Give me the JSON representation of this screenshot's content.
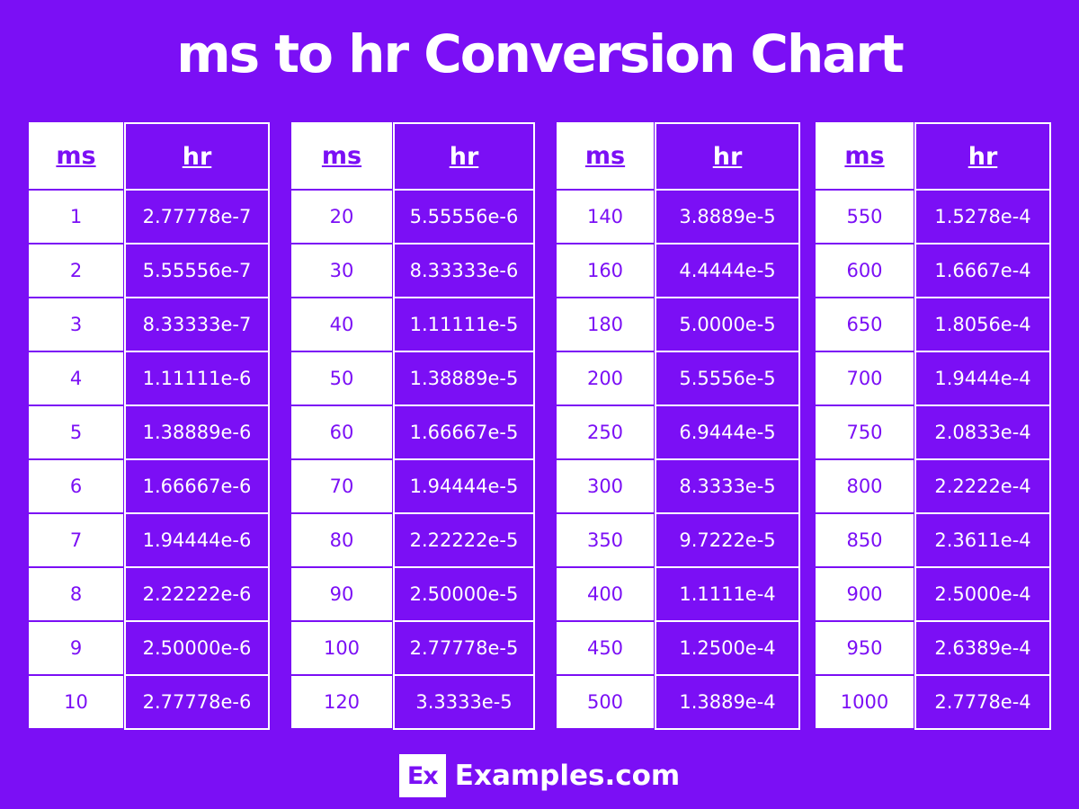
{
  "title": "ms to hr Conversion Chart",
  "colors": {
    "background": "#7b0ff5",
    "text_light": "#ffffff",
    "accent": "#7b0ff5"
  },
  "headers": {
    "ms": "ms",
    "hr": "hr"
  },
  "tables": [
    {
      "rows": [
        {
          "ms": "1",
          "hr": "2.77778e-7"
        },
        {
          "ms": "2",
          "hr": "5.55556e-7"
        },
        {
          "ms": "3",
          "hr": "8.33333e-7"
        },
        {
          "ms": "4",
          "hr": "1.11111e-6"
        },
        {
          "ms": "5",
          "hr": "1.38889e-6"
        },
        {
          "ms": "6",
          "hr": "1.66667e-6"
        },
        {
          "ms": "7",
          "hr": "1.94444e-6"
        },
        {
          "ms": "8",
          "hr": "2.22222e-6"
        },
        {
          "ms": "9",
          "hr": "2.50000e-6"
        },
        {
          "ms": "10",
          "hr": "2.77778e-6"
        }
      ]
    },
    {
      "rows": [
        {
          "ms": "20",
          "hr": "5.55556e-6"
        },
        {
          "ms": "30",
          "hr": "8.33333e-6"
        },
        {
          "ms": "40",
          "hr": "1.11111e-5"
        },
        {
          "ms": "50",
          "hr": "1.38889e-5"
        },
        {
          "ms": "60",
          "hr": "1.66667e-5"
        },
        {
          "ms": "70",
          "hr": "1.94444e-5"
        },
        {
          "ms": "80",
          "hr": "2.22222e-5"
        },
        {
          "ms": "90",
          "hr": "2.50000e-5"
        },
        {
          "ms": "100",
          "hr": "2.77778e-5"
        },
        {
          "ms": "120",
          "hr": "3.3333e-5"
        }
      ]
    },
    {
      "rows": [
        {
          "ms": "140",
          "hr": "3.8889e-5"
        },
        {
          "ms": "160",
          "hr": "4.4444e-5"
        },
        {
          "ms": "180",
          "hr": "5.0000e-5"
        },
        {
          "ms": "200",
          "hr": "5.5556e-5"
        },
        {
          "ms": "250",
          "hr": "6.9444e-5"
        },
        {
          "ms": "300",
          "hr": "8.3333e-5"
        },
        {
          "ms": "350",
          "hr": "9.7222e-5"
        },
        {
          "ms": "400",
          "hr": "1.1111e-4"
        },
        {
          "ms": "450",
          "hr": "1.2500e-4"
        },
        {
          "ms": "500",
          "hr": "1.3889e-4"
        }
      ]
    },
    {
      "rows": [
        {
          "ms": "550",
          "hr": "1.5278e-4"
        },
        {
          "ms": "600",
          "hr": "1.6667e-4"
        },
        {
          "ms": "650",
          "hr": "1.8056e-4"
        },
        {
          "ms": "700",
          "hr": "1.9444e-4"
        },
        {
          "ms": "750",
          "hr": "2.0833e-4"
        },
        {
          "ms": "800",
          "hr": "2.2222e-4"
        },
        {
          "ms": "850",
          "hr": "2.3611e-4"
        },
        {
          "ms": "900",
          "hr": "2.5000e-4"
        },
        {
          "ms": "950",
          "hr": "2.6389e-4"
        },
        {
          "ms": "1000",
          "hr": "2.7778e-4"
        }
      ]
    }
  ],
  "footer": {
    "logo_mark": "Ex",
    "logo_text": "Examples.com"
  }
}
